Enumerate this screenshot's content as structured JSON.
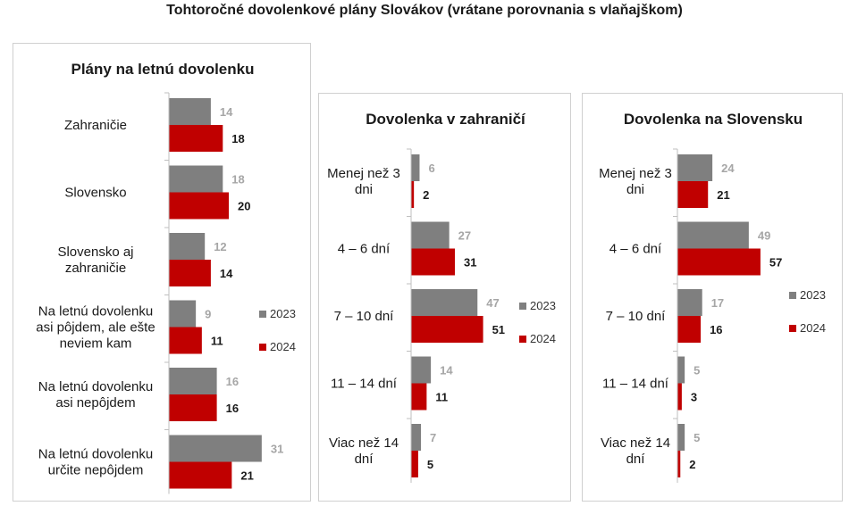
{
  "title": "Tohtoročné dovolenkové plány Slovákov (vrátane porovnania s vlaňajškom)",
  "colors": {
    "2023": "#7f7f7f",
    "2024": "#c00000",
    "label2023": "#a6a6a6",
    "label2024": "#1a1a1a"
  },
  "chart_data": [
    {
      "type": "bar",
      "orientation": "horizontal",
      "title": "Plány na letnú dovolenku",
      "categories": [
        [
          "Zahraničie"
        ],
        [
          "Slovensko"
        ],
        [
          "Slovensko aj",
          "zahraničie"
        ],
        [
          "Na letnú dovolenku",
          "asi pôjdem, ale ešte",
          "neviem kam"
        ],
        [
          "Na letnú dovolenku",
          "asi nepôjdem"
        ],
        [
          "Na letnú dovolenku",
          "určite nepôjdem"
        ]
      ],
      "series": [
        {
          "name": "2023",
          "values": [
            14,
            18,
            12,
            9,
            16,
            31
          ]
        },
        {
          "name": "2024",
          "values": [
            18,
            20,
            14,
            11,
            16,
            21
          ]
        }
      ],
      "legend": "right"
    },
    {
      "type": "bar",
      "orientation": "horizontal",
      "title": "Dovolenka v zahraničí",
      "categories": [
        [
          "Menej než 3",
          "dni"
        ],
        [
          "4 – 6 dní"
        ],
        [
          "7 – 10 dní"
        ],
        [
          "11 – 14 dní"
        ],
        [
          "Viac než 14",
          "dní"
        ]
      ],
      "series": [
        {
          "name": "2023",
          "values": [
            6,
            27,
            47,
            14,
            7
          ]
        },
        {
          "name": "2024",
          "values": [
            2,
            31,
            51,
            11,
            5
          ]
        }
      ],
      "legend": "right"
    },
    {
      "type": "bar",
      "orientation": "horizontal",
      "title": "Dovolenka na Slovensku",
      "categories": [
        [
          "Menej než 3",
          "dni"
        ],
        [
          "4 – 6 dní"
        ],
        [
          "7 – 10 dní"
        ],
        [
          "11 – 14 dní"
        ],
        [
          "Viac než 14",
          "dní"
        ]
      ],
      "series": [
        {
          "name": "2023",
          "values": [
            24,
            49,
            17,
            5,
            5
          ]
        },
        {
          "name": "2024",
          "values": [
            21,
            57,
            16,
            3,
            2
          ]
        }
      ],
      "legend": "right"
    }
  ]
}
